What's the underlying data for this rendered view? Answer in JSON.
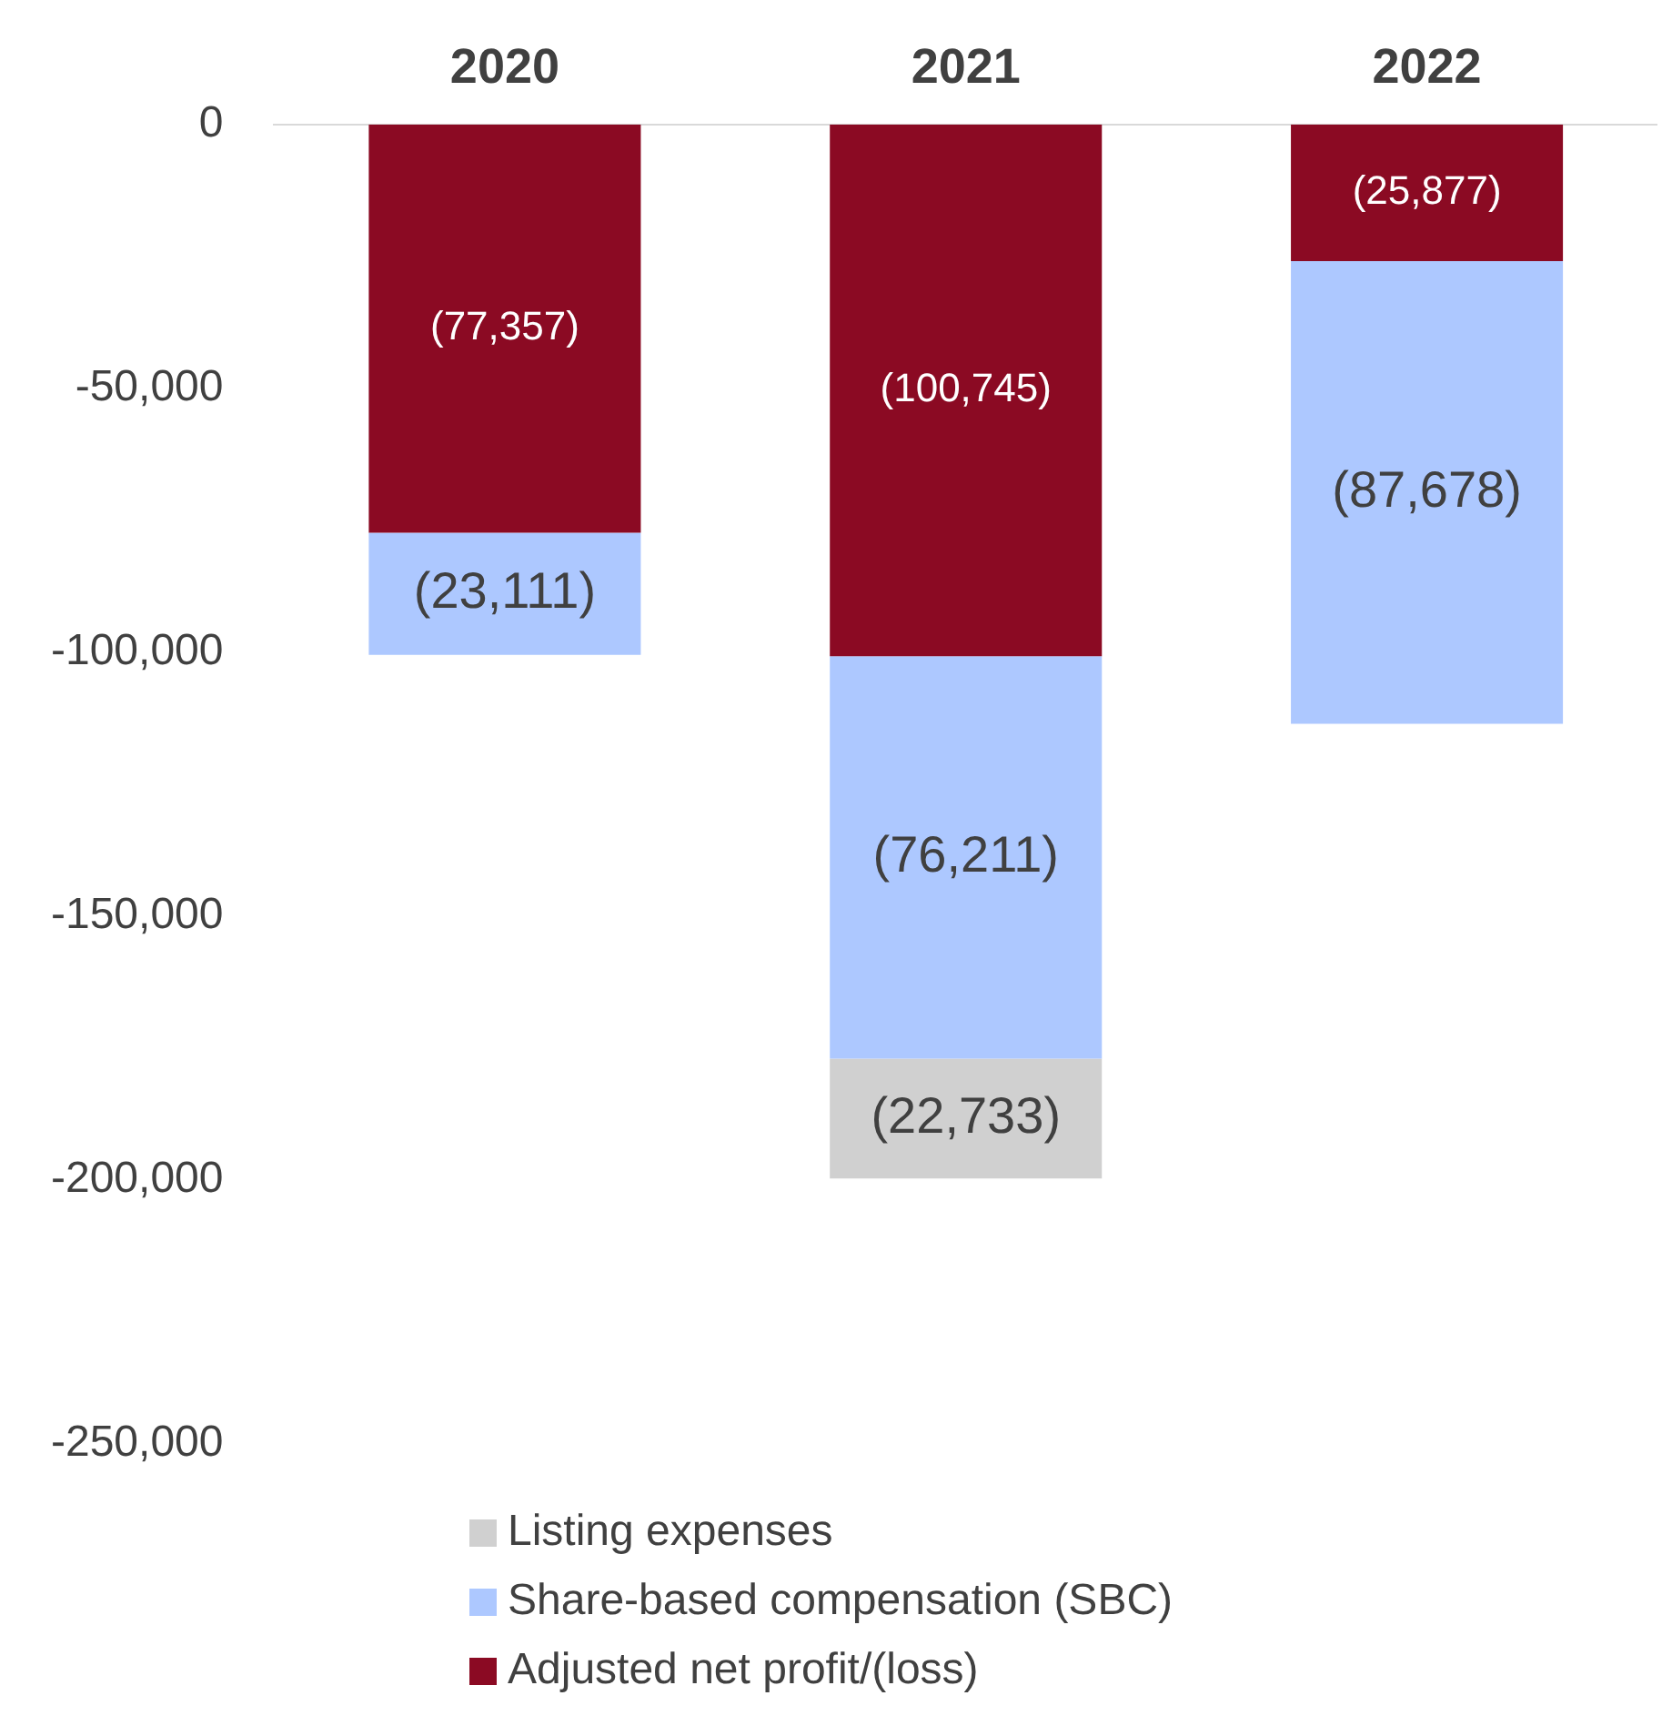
{
  "chart_data": {
    "type": "bar",
    "stacked": true,
    "categories": [
      "2020",
      "2021",
      "2022"
    ],
    "series": [
      {
        "name": "Adjusted net profit/(loss)",
        "color": "#8b0a23",
        "values": [
          -77357,
          -100745,
          -25877
        ],
        "value_labels": [
          "(77,357)",
          "(100,745)",
          "(25,877)"
        ]
      },
      {
        "name": "Share-based compensation (SBC)",
        "color": "#adc8ff",
        "values": [
          -23111,
          -76211,
          -87678
        ],
        "value_labels": [
          "(23,111)",
          "(76,211)",
          "(87,678)"
        ]
      },
      {
        "name": "Listing expenses",
        "color": "#d0d0d0",
        "values": [
          null,
          -22733,
          null
        ],
        "value_labels": [
          null,
          "(22,733)",
          null
        ]
      }
    ],
    "ylim": [
      -250000,
      0
    ],
    "yticks": [
      {
        "value": 0,
        "label": "0"
      },
      {
        "value": -50000,
        "label": "-50,000"
      },
      {
        "value": -100000,
        "label": "-100,000"
      },
      {
        "value": -150000,
        "label": "-150,000"
      },
      {
        "value": -200000,
        "label": "-200,000"
      },
      {
        "value": -250000,
        "label": "-250,000"
      }
    ],
    "grid": false,
    "legend": "bottom"
  }
}
